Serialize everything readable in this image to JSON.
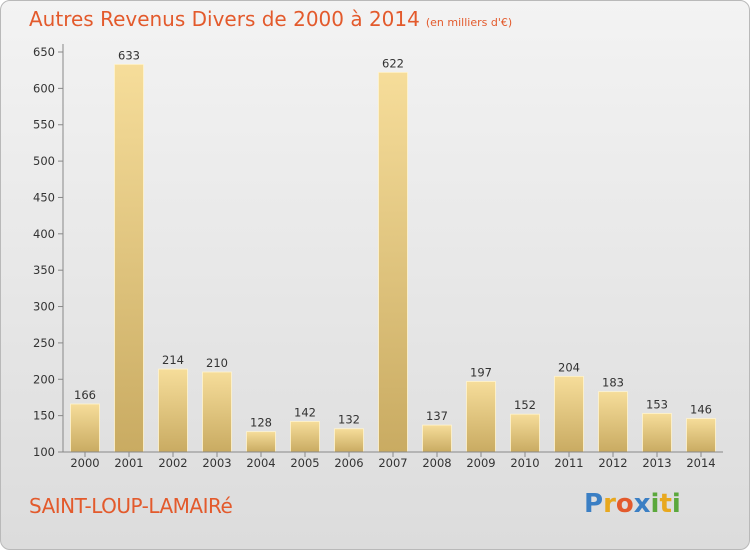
{
  "title": "Autres Revenus Divers de 2000 à 2014",
  "unit": "(en milliers d'€)",
  "commune": "SAINT-LOUP-LAMAIRé",
  "brand": {
    "letters": [
      "P",
      "r",
      "o",
      "x",
      "i",
      "t",
      "i"
    ],
    "colors": [
      "#3b7fc4",
      "#e8a81e",
      "#e35a2c",
      "#3b7fc4",
      "#5ba83c",
      "#e8a81e",
      "#5ba83c"
    ]
  },
  "colors": {
    "bar_light": "#f6dd9a",
    "bar_dark": "#c9ab62",
    "title": "#e35a2c"
  },
  "chart_data": {
    "type": "bar",
    "title": "Autres Revenus Divers de 2000 à 2014",
    "categories": [
      "2000",
      "2001",
      "2002",
      "2003",
      "2004",
      "2005",
      "2006",
      "2007",
      "2008",
      "2009",
      "2010",
      "2011",
      "2012",
      "2013",
      "2014"
    ],
    "values": [
      166,
      633,
      214,
      210,
      128,
      142,
      132,
      622,
      137,
      197,
      152,
      204,
      183,
      153,
      146
    ],
    "ylim": [
      100,
      650
    ],
    "yticks": [
      100,
      150,
      200,
      250,
      300,
      350,
      400,
      450,
      500,
      550,
      600,
      650
    ],
    "grid": false,
    "legend": "none"
  }
}
